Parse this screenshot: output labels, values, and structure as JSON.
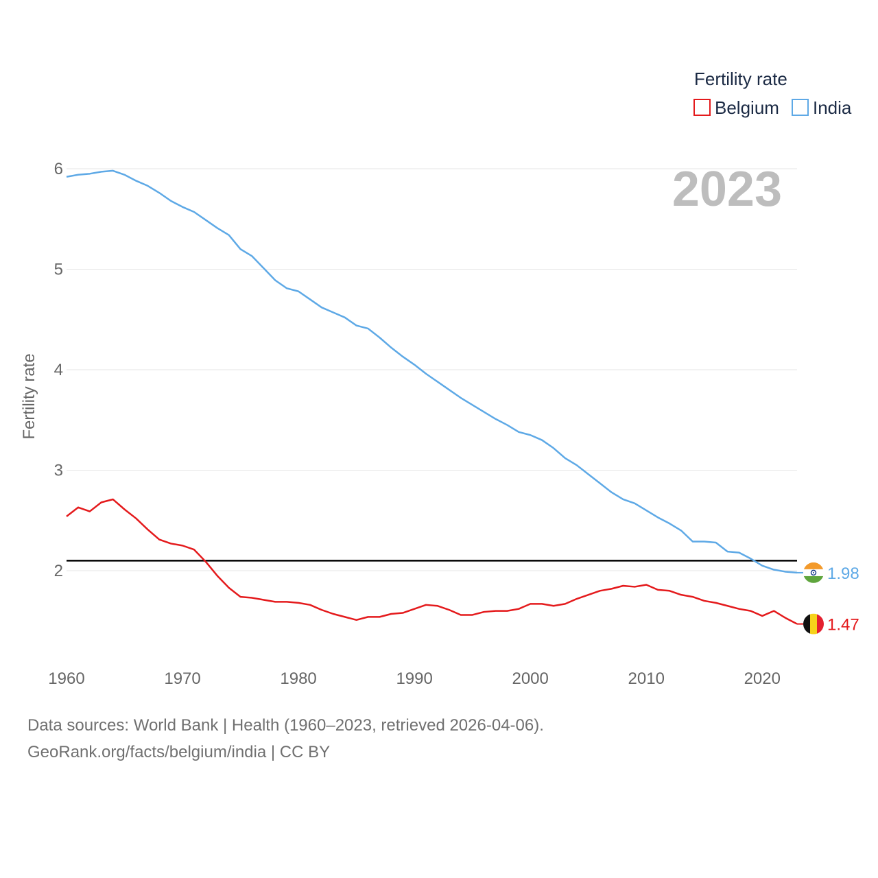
{
  "chart_data": {
    "type": "line",
    "title": "",
    "legend_title": "Fertility rate",
    "ylabel": "Fertility rate",
    "xlabel": "",
    "xlim": [
      1960,
      2023
    ],
    "ylim": [
      1.2,
      6.6
    ],
    "y_ticks": [
      2,
      3,
      4,
      5,
      6
    ],
    "x_ticks": [
      1960,
      1970,
      1980,
      1990,
      2000,
      2010,
      2020
    ],
    "year_label": "2023",
    "reference_line": 2.1,
    "x": [
      1960,
      1961,
      1962,
      1963,
      1964,
      1965,
      1966,
      1967,
      1968,
      1969,
      1970,
      1971,
      1972,
      1973,
      1974,
      1975,
      1976,
      1977,
      1978,
      1979,
      1980,
      1981,
      1982,
      1983,
      1984,
      1985,
      1986,
      1987,
      1988,
      1989,
      1990,
      1991,
      1992,
      1993,
      1994,
      1995,
      1996,
      1997,
      1998,
      1999,
      2000,
      2001,
      2002,
      2003,
      2004,
      2005,
      2006,
      2007,
      2008,
      2009,
      2010,
      2011,
      2012,
      2013,
      2014,
      2015,
      2016,
      2017,
      2018,
      2019,
      2020,
      2021,
      2022,
      2023
    ],
    "series": [
      {
        "name": "Belgium",
        "color": "#e41a1c",
        "end_label": "1.47",
        "values": [
          2.54,
          2.63,
          2.59,
          2.68,
          2.71,
          2.61,
          2.52,
          2.41,
          2.31,
          2.27,
          2.25,
          2.21,
          2.09,
          1.95,
          1.83,
          1.74,
          1.73,
          1.71,
          1.69,
          1.69,
          1.68,
          1.66,
          1.61,
          1.57,
          1.54,
          1.51,
          1.54,
          1.54,
          1.57,
          1.58,
          1.62,
          1.66,
          1.65,
          1.61,
          1.56,
          1.56,
          1.59,
          1.6,
          1.6,
          1.62,
          1.67,
          1.67,
          1.65,
          1.67,
          1.72,
          1.76,
          1.8,
          1.82,
          1.85,
          1.84,
          1.86,
          1.81,
          1.8,
          1.76,
          1.74,
          1.7,
          1.68,
          1.65,
          1.62,
          1.6,
          1.55,
          1.6,
          1.53,
          1.47
        ]
      },
      {
        "name": "India",
        "color": "#5ea9e6",
        "end_label": "1.98",
        "values": [
          5.92,
          5.94,
          5.95,
          5.97,
          5.98,
          5.94,
          5.88,
          5.83,
          5.76,
          5.68,
          5.62,
          5.57,
          5.49,
          5.41,
          5.34,
          5.2,
          5.13,
          5.01,
          4.89,
          4.81,
          4.78,
          4.7,
          4.62,
          4.57,
          4.52,
          4.44,
          4.41,
          4.32,
          4.22,
          4.13,
          4.05,
          3.96,
          3.88,
          3.8,
          3.72,
          3.65,
          3.58,
          3.51,
          3.45,
          3.38,
          3.35,
          3.3,
          3.22,
          3.12,
          3.05,
          2.96,
          2.87,
          2.78,
          2.71,
          2.67,
          2.6,
          2.53,
          2.47,
          2.4,
          2.29,
          2.29,
          2.28,
          2.19,
          2.18,
          2.12,
          2.05,
          2.01,
          1.99,
          1.98
        ]
      }
    ]
  },
  "footer": {
    "line1": "Data sources: World Bank | Health (1960–2023, retrieved 2026-04-06).",
    "line2": "GeoRank.org/facts/belgium/india | CC BY"
  }
}
